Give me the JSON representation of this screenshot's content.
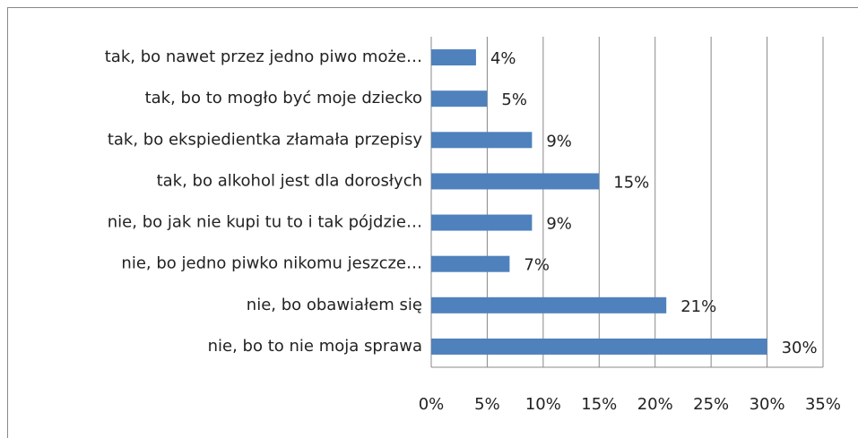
{
  "chart_data": {
    "type": "bar",
    "orientation": "horizontal",
    "categories": [
      "tak, bo nawet przez jedno piwo może…",
      "tak, bo to mogło być moje dziecko",
      "tak, bo ekspiedientka złamała przepisy",
      "tak, bo alkohol jest dla dorosłych",
      "nie, bo jak nie kupi tu to i tak pójdzie…",
      "nie, bo jedno piwko nikomu jeszcze…",
      "nie, bo obawiałem się",
      "nie, bo to nie moja sprawa"
    ],
    "values": [
      4,
      5,
      9,
      15,
      9,
      7,
      21,
      30
    ],
    "value_labels": [
      "4%",
      "5%",
      "9%",
      "15%",
      "9%",
      "7%",
      "21%",
      "30%"
    ],
    "color": "#4f81bd",
    "xlim": [
      0,
      35
    ],
    "xticks": [
      {
        "value": 0,
        "label": "0%"
      },
      {
        "value": 5,
        "label": "5%"
      },
      {
        "value": 10,
        "label": "10%"
      },
      {
        "value": 15,
        "label": "15%"
      },
      {
        "value": 20,
        "label": "20%"
      },
      {
        "value": 25,
        "label": "25%"
      },
      {
        "value": 30,
        "label": "30%"
      },
      {
        "value": 35,
        "label": "35%"
      }
    ],
    "grid": true
  }
}
